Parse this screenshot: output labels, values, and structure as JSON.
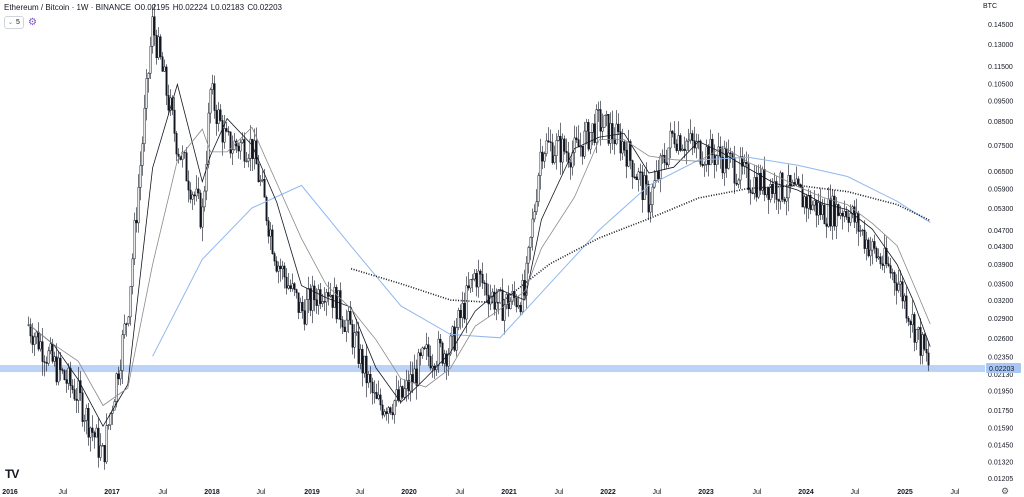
{
  "header": {
    "symbol": "Ethereum / Bitcoin · 1W · BINANCE",
    "open": "O0.02195",
    "high": "H0.02224",
    "low": "L0.02183",
    "close": "C0.02203",
    "indicator_badge": "5",
    "currency": "BTC"
  },
  "colors": {
    "candle": "#131722",
    "highlight_band": "#bbd3f7",
    "ma_blue": "#90b8ee",
    "ma_thin": "#131722",
    "ma_gray": "#8a8a8a",
    "ma_dotted": "#131722",
    "price_tag": "#a9c7f3"
  },
  "icons": {
    "indicator_settings": "gear-icon",
    "logo": "tradingview-logo-icon",
    "chart_settings": "gear-icon"
  },
  "chart_data": {
    "type": "candlestick",
    "pair": "ETH/BTC",
    "interval": "1W",
    "y_scale": "log",
    "y_ticks": [
      0.1455,
      0.1305,
      0.1155,
      0.105,
      0.0955,
      0.0855,
      0.075,
      0.065,
      0.059,
      0.053,
      0.047,
      0.043,
      0.039,
      0.035,
      0.032,
      0.029,
      0.026,
      0.0235,
      0.0213,
      0.0195,
      0.0175,
      0.0159,
      0.0145,
      0.0132,
      0.01205
    ],
    "y_tick_labels": [
      "0.14500",
      "0.13000",
      "0.11500",
      "0.10500",
      "0.09500",
      "0.08500",
      "0.07500",
      "0.06500",
      "0.05900",
      "0.05300",
      "0.04700",
      "0.04300",
      "0.03900",
      "0.03500",
      "0.03200",
      "0.02900",
      "0.02600",
      "0.02350",
      "0.02130",
      "0.01950",
      "0.01750",
      "0.01590",
      "0.01450",
      "0.01320",
      "0.01205"
    ],
    "x_labels": [
      "2016",
      "Jul",
      "2017",
      "Jul",
      "2018",
      "Jul",
      "2019",
      "Jul",
      "2020",
      "Jul",
      "2021",
      "Jul",
      "2022",
      "Jul",
      "2023",
      "Jul",
      "2024",
      "Jul",
      "2025",
      "Jul"
    ],
    "current_price": 0.02203,
    "current_price_label": "0.02203",
    "support_level": 0.02203,
    "close_path": [
      [
        "2016-03",
        0.028
      ],
      [
        "2016-06",
        0.0225
      ],
      [
        "2016-09",
        0.019
      ],
      [
        "2016-12",
        0.0135
      ],
      [
        "2017-03",
        0.03
      ],
      [
        "2017-06",
        0.1455
      ],
      [
        "2017-09",
        0.075
      ],
      [
        "2017-12",
        0.05
      ],
      [
        "2018-01",
        0.1
      ],
      [
        "2018-03",
        0.075
      ],
      [
        "2018-06",
        0.075
      ],
      [
        "2018-09",
        0.04
      ],
      [
        "2018-12",
        0.03
      ],
      [
        "2019-03",
        0.035
      ],
      [
        "2019-06",
        0.027
      ],
      [
        "2019-09",
        0.018
      ],
      [
        "2019-12",
        0.0185
      ],
      [
        "2020-03",
        0.0235
      ],
      [
        "2020-06",
        0.0245
      ],
      [
        "2020-09",
        0.037
      ],
      [
        "2020-12",
        0.031
      ],
      [
        "2021-03",
        0.033
      ],
      [
        "2021-05",
        0.075
      ],
      [
        "2021-09",
        0.072
      ],
      [
        "2021-12",
        0.085
      ],
      [
        "2022-03",
        0.075
      ],
      [
        "2022-06",
        0.055
      ],
      [
        "2022-09",
        0.08
      ],
      [
        "2022-12",
        0.073
      ],
      [
        "2023-03",
        0.07
      ],
      [
        "2023-06",
        0.062
      ],
      [
        "2023-09",
        0.06
      ],
      [
        "2023-12",
        0.057
      ],
      [
        "2024-03",
        0.052
      ],
      [
        "2024-06",
        0.053
      ],
      [
        "2024-09",
        0.042
      ],
      [
        "2024-12",
        0.036
      ],
      [
        "2025-02",
        0.028
      ],
      [
        "2025-04",
        0.0219
      ]
    ],
    "ma_blue": [
      [
        "2017-06",
        0.0235
      ],
      [
        "2017-12",
        0.04
      ],
      [
        "2018-06",
        0.053
      ],
      [
        "2018-12",
        0.06
      ],
      [
        "2019-06",
        0.043
      ],
      [
        "2019-12",
        0.031
      ],
      [
        "2020-06",
        0.0265
      ],
      [
        "2020-12",
        0.026
      ],
      [
        "2021-06",
        0.035
      ],
      [
        "2021-12",
        0.047
      ],
      [
        "2022-06",
        0.06
      ],
      [
        "2022-12",
        0.069
      ],
      [
        "2023-06",
        0.07
      ],
      [
        "2023-12",
        0.067
      ],
      [
        "2024-06",
        0.063
      ],
      [
        "2024-12",
        0.055
      ],
      [
        "2025-04",
        0.049
      ]
    ],
    "ma_dotted": [
      [
        "2019-06",
        0.038
      ],
      [
        "2019-12",
        0.035
      ],
      [
        "2020-06",
        0.032
      ],
      [
        "2020-12",
        0.0315
      ],
      [
        "2021-06",
        0.039
      ],
      [
        "2021-12",
        0.045
      ],
      [
        "2022-06",
        0.05
      ],
      [
        "2022-12",
        0.056
      ],
      [
        "2023-06",
        0.059
      ],
      [
        "2023-12",
        0.06
      ],
      [
        "2024-06",
        0.058
      ],
      [
        "2024-12",
        0.054
      ],
      [
        "2025-04",
        0.0495
      ]
    ]
  }
}
